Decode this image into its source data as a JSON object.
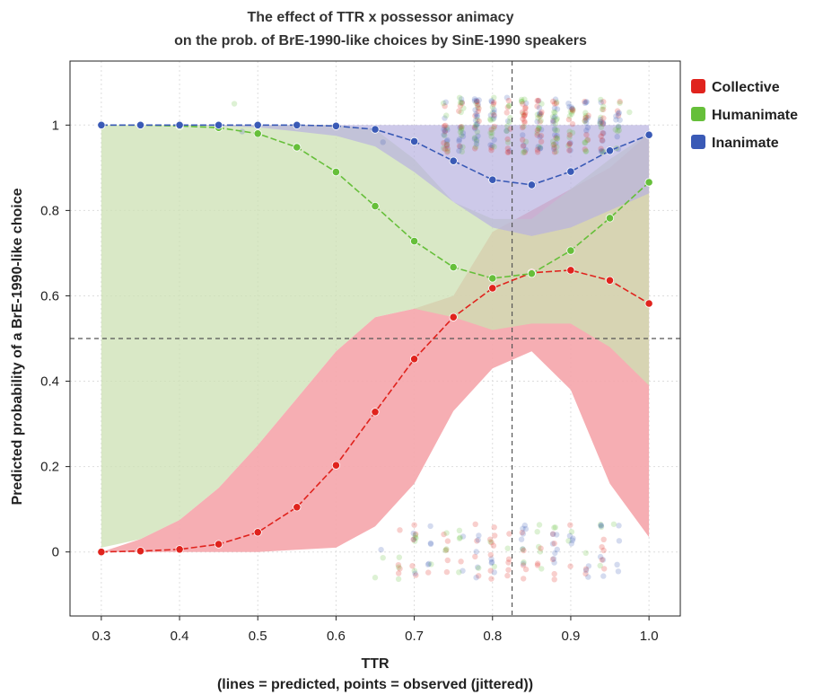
{
  "chart_data": {
    "type": "line",
    "title": [
      "The effect of TTR x possessor animacy",
      "on the prob. of BrE-1990-like choices by SinE-1990 speakers"
    ],
    "xlabel": [
      "TTR",
      "(lines = predicted, points = observed (jittered))"
    ],
    "ylabel": "Predicted probability of a BrE-1990-like choice",
    "xlim": [
      0.26,
      1.04
    ],
    "ylim": [
      -0.15,
      1.15
    ],
    "x_ticks": [
      0.3,
      0.4,
      0.5,
      0.6,
      0.7,
      0.8,
      0.9,
      1.0
    ],
    "x_tick_labels": [
      "0.3",
      "0.4",
      "0.5",
      "0.6",
      "0.7",
      "0.8",
      "0.9",
      "1.0"
    ],
    "y_ticks": [
      0,
      0.2,
      0.4,
      0.6,
      0.8,
      1
    ],
    "y_tick_labels": [
      "0",
      "0.2",
      "0.4",
      "0.6",
      "0.8",
      "1"
    ],
    "grid": true,
    "legend_position": "top-right outside",
    "reference_lines": {
      "x": 0.825,
      "y": 0.5
    },
    "x": [
      0.3,
      0.35,
      0.4,
      0.45,
      0.5,
      0.55,
      0.6,
      0.65,
      0.7,
      0.75,
      0.8,
      0.85,
      0.9,
      0.95,
      1.0
    ],
    "series": [
      {
        "name": "Collective",
        "color": "#e0231d",
        "ribbon_color": "#f5a5ab",
        "values": [
          0.0,
          0.002,
          0.006,
          0.018,
          0.046,
          0.105,
          0.203,
          0.328,
          0.452,
          0.55,
          0.618,
          0.654,
          0.66,
          0.636,
          0.582
        ],
        "lower": [
          0.0,
          0.0,
          0.0,
          0.0,
          0.0,
          0.005,
          0.01,
          0.06,
          0.16,
          0.33,
          0.43,
          0.47,
          0.38,
          0.16,
          0.035
        ],
        "upper": [
          0.0,
          0.03,
          0.075,
          0.15,
          0.25,
          0.36,
          0.47,
          0.55,
          0.57,
          0.6,
          0.75,
          0.8,
          0.85,
          0.9,
          0.98
        ]
      },
      {
        "name": "Humanimate",
        "color": "#66bf3a",
        "ribbon_color": "#cce0b3",
        "values": [
          1.0,
          1.0,
          0.998,
          0.994,
          0.98,
          0.948,
          0.89,
          0.81,
          0.728,
          0.667,
          0.641,
          0.652,
          0.706,
          0.782,
          0.866
        ],
        "lower": [
          0.01,
          0.03,
          0.075,
          0.15,
          0.25,
          0.36,
          0.47,
          0.55,
          0.57,
          0.55,
          0.52,
          0.535,
          0.535,
          0.48,
          0.39
        ],
        "upper": [
          1.0,
          1.0,
          1.0,
          1.0,
          1.0,
          1.0,
          1.0,
          0.99,
          0.92,
          0.82,
          0.78,
          0.78,
          0.85,
          0.92,
          0.98
        ]
      },
      {
        "name": "Inanimate",
        "color": "#3a5ab6",
        "ribbon_color": "#b8b2e0",
        "values": [
          1.0,
          1.0,
          1.0,
          1.0,
          1.0,
          1.0,
          0.998,
          0.99,
          0.962,
          0.916,
          0.872,
          0.86,
          0.891,
          0.94,
          0.977
        ],
        "lower": [
          1.0,
          1.0,
          1.0,
          0.998,
          0.995,
          0.985,
          0.975,
          0.95,
          0.89,
          0.82,
          0.76,
          0.74,
          0.76,
          0.8,
          0.84
        ],
        "upper": [
          1.0,
          1.0,
          1.0,
          1.0,
          1.0,
          1.0,
          1.0,
          1.0,
          1.0,
          1.0,
          1.0,
          1.0,
          1.0,
          1.0,
          1.0
        ]
      }
    ],
    "observed_points": {
      "x_range_top": [
        0.73,
        0.96
      ],
      "x_range_bottom": [
        0.66,
        0.96
      ],
      "y_top_center": 1.0,
      "y_bottom_center": 0.0,
      "note_count_top": 320,
      "note_count_bottom": 140
    }
  },
  "legend": [
    {
      "label": "Collective",
      "color": "#e0231d"
    },
    {
      "label": "Humanimate",
      "color": "#66bf3a"
    },
    {
      "label": "Inanimate",
      "color": "#3a5ab6"
    }
  ]
}
